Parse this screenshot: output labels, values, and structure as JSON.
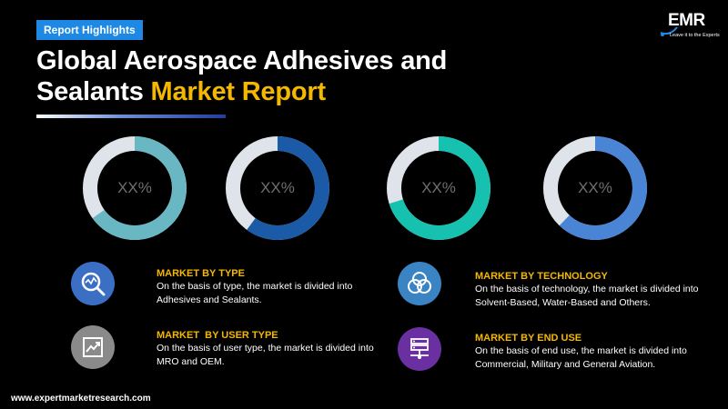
{
  "header": {
    "badge": "Report Highlights",
    "title_line1": "Global Aerospace Adhesives and",
    "title_line2_white": "Sealants ",
    "title_line2_highlight": "Market Report"
  },
  "logo": {
    "name": "EMR",
    "tagline": "Leave it to the Experts"
  },
  "donuts": [
    {
      "value_text": "XX%",
      "fill_fraction": 0.65,
      "color": "#69b7c2"
    },
    {
      "value_text": "XX%",
      "fill_fraction": 0.6,
      "color": "#1a5aa6"
    },
    {
      "value_text": "XX%",
      "fill_fraction": 0.7,
      "color": "#16c1b0"
    },
    {
      "value_text": "XX%",
      "fill_fraction": 0.62,
      "color": "#4a84d4"
    }
  ],
  "segments": [
    {
      "heading": "MARKET BY TYPE",
      "description": "On the basis of type, the market is divided into Adhesives and Sealants.",
      "icon": "magnifier-chart-icon",
      "icon_color": "#3a6fc4"
    },
    {
      "heading": "MARKET  BY USER TYPE",
      "description": "On the basis of user type, the market is divided into MRO and OEM.",
      "icon": "trend-chart-icon",
      "icon_color": "#8a8a8a"
    },
    {
      "heading": "MARKET BY TECHNOLOGY",
      "description": "On the basis of technology, the market is divided into Solvent-Based, Water-Based and Others.",
      "icon": "venn-circles-icon",
      "icon_color": "#3a84c4"
    },
    {
      "heading": "MARKET BY END USE",
      "description": "On the basis of end use, the market is divided into Commercial, Military and General Aviation.",
      "icon": "server-network-icon",
      "icon_color": "#6a2fa0"
    }
  ],
  "footer": {
    "url": "www.expertmarketresearch.com"
  }
}
